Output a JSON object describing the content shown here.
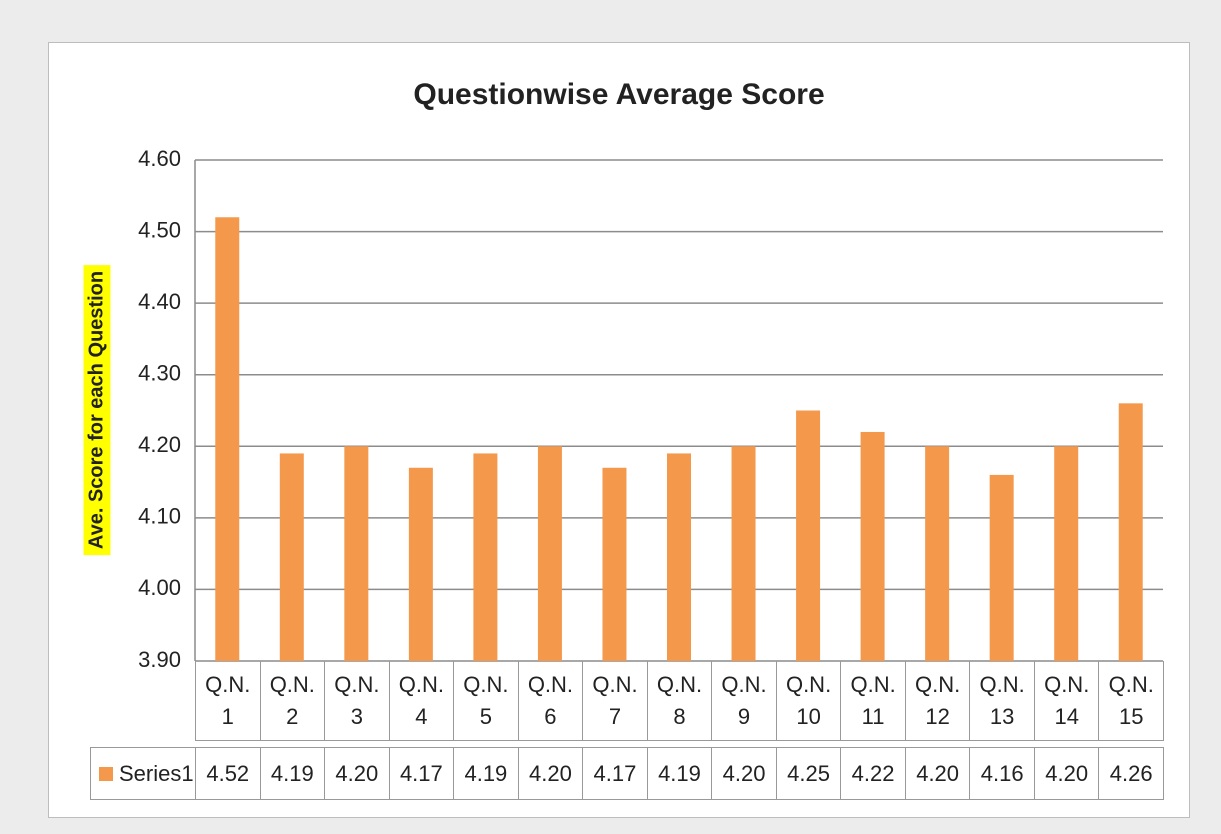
{
  "chart_data": {
    "type": "bar",
    "title": "Questionwise Average Score",
    "y_label": "Ave. Score for each Question",
    "categories": [
      "Q.N. 1",
      "Q.N. 2",
      "Q.N. 3",
      "Q.N. 4",
      "Q.N. 5",
      "Q.N. 6",
      "Q.N. 7",
      "Q.N. 8",
      "Q.N. 9",
      "Q.N. 10",
      "Q.N. 11",
      "Q.N. 12",
      "Q.N. 13",
      "Q.N. 14",
      "Q.N. 15"
    ],
    "series": [
      {
        "name": "Series1",
        "color": "#f4994c",
        "values": [
          4.52,
          4.19,
          4.2,
          4.17,
          4.19,
          4.2,
          4.17,
          4.19,
          4.2,
          4.25,
          4.22,
          4.2,
          4.16,
          4.2,
          4.26
        ],
        "value_labels": [
          "4.52",
          "4.19",
          "4.20",
          "4.17",
          "4.19",
          "4.20",
          "4.17",
          "4.19",
          "4.20",
          "4.25",
          "4.22",
          "4.20",
          "4.16",
          "4.20",
          "4.26"
        ]
      }
    ],
    "ylim": [
      3.9,
      4.6
    ],
    "yticks": [
      {
        "value": 3.9,
        "label": "3.90"
      },
      {
        "value": 4.0,
        "label": "4.00"
      },
      {
        "value": 4.1,
        "label": "4.10"
      },
      {
        "value": 4.2,
        "label": "4.20"
      },
      {
        "value": 4.3,
        "label": "4.30"
      },
      {
        "value": 4.4,
        "label": "4.40"
      },
      {
        "value": 4.5,
        "label": "4.50"
      },
      {
        "value": 4.6,
        "label": "4.60"
      }
    ],
    "grid": true,
    "data_table": true
  }
}
